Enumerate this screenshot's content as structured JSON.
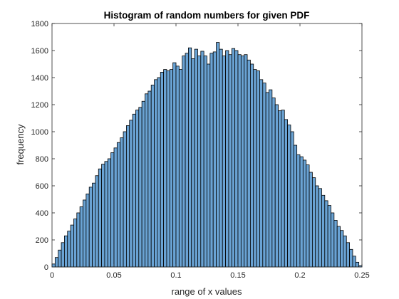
{
  "chart_data": {
    "type": "bar",
    "title": "Histogram of random numbers for given PDF",
    "xlabel": "range of x values",
    "ylabel": "frequency",
    "xlim": [
      0,
      0.25
    ],
    "ylim": [
      0,
      1800
    ],
    "xticks": [
      0,
      0.05,
      0.1,
      0.15,
      0.2,
      0.25
    ],
    "xtick_labels": [
      "0",
      "0.05",
      "0.1",
      "0.15",
      "0.2",
      "0.25"
    ],
    "yticks": [
      0,
      200,
      400,
      600,
      800,
      1000,
      1200,
      1400,
      1600,
      1800
    ],
    "ytick_labels": [
      "0",
      "200",
      "400",
      "600",
      "800",
      "1000",
      "1200",
      "1400",
      "1600",
      "1800"
    ],
    "grid": false,
    "bin_start": 0,
    "bin_width": 0.0025,
    "values": [
      22,
      70,
      125,
      180,
      230,
      265,
      310,
      355,
      400,
      445,
      495,
      540,
      590,
      620,
      675,
      725,
      760,
      780,
      800,
      845,
      880,
      920,
      955,
      1000,
      1045,
      1085,
      1130,
      1160,
      1180,
      1225,
      1280,
      1300,
      1345,
      1385,
      1400,
      1440,
      1460,
      1450,
      1460,
      1510,
      1485,
      1460,
      1560,
      1580,
      1620,
      1540,
      1610,
      1560,
      1595,
      1560,
      1500,
      1580,
      1590,
      1660,
      1610,
      1560,
      1600,
      1570,
      1615,
      1600,
      1570,
      1560,
      1570,
      1530,
      1500,
      1460,
      1450,
      1385,
      1360,
      1290,
      1310,
      1250,
      1200,
      1155,
      1160,
      1090,
      1050,
      1000,
      900,
      830,
      815,
      790,
      755,
      700,
      660,
      600,
      580,
      530,
      490,
      455,
      400,
      345,
      300,
      270,
      230,
      180,
      130,
      80,
      35,
      10
    ],
    "bar_color": "#6aa3d4",
    "bar_edge_color": "#000000"
  }
}
